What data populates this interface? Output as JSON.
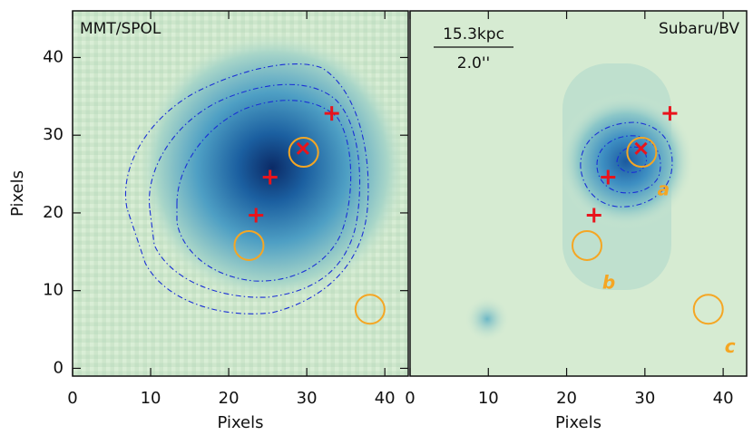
{
  "chart_data": [
    {
      "type": "image",
      "title": "MMT/SPOL",
      "title_corner": "upper left",
      "xlabel": "Pixels",
      "ylabel": "Pixels",
      "xlim": [
        0,
        43
      ],
      "ylim": [
        -1,
        46
      ],
      "xticks": [
        0,
        10,
        20,
        30,
        40
      ],
      "yticks": [
        0,
        10,
        20,
        30,
        40
      ],
      "crosses": {
        "x": [
          33.2,
          25.3,
          23.5
        ],
        "y": [
          32.8,
          24.6,
          19.7
        ],
        "color": "#e8141c"
      },
      "x_marks": {
        "x": [
          29.5
        ],
        "y": [
          28.3
        ],
        "color": "#e8141c"
      },
      "circles": {
        "x": [
          29.6,
          22.6,
          38.1
        ],
        "y": [
          27.8,
          15.8,
          7.6
        ],
        "color": "#f5a623"
      }
    },
    {
      "type": "image",
      "title": "Subaru/BV",
      "title_corner": "upper right",
      "xlabel": "Pixels",
      "xlim": [
        0,
        43
      ],
      "ylim": [
        -1,
        46
      ],
      "xticks": [
        0,
        10,
        20,
        30,
        40
      ],
      "scale_bar": {
        "top": "15.3kpc",
        "bottom": "2.0''"
      },
      "crosses": {
        "x": [
          33.2,
          25.3,
          23.5
        ],
        "y": [
          32.8,
          24.6,
          19.7
        ],
        "color": "#e8141c"
      },
      "x_marks": {
        "x": [
          29.5
        ],
        "y": [
          28.3
        ],
        "color": "#e8141c"
      },
      "circles": {
        "x": [
          29.6,
          22.6,
          38.1
        ],
        "y": [
          27.8,
          15.8,
          7.6
        ],
        "color": "#f5a623",
        "labels": [
          "a",
          "b",
          "c"
        ]
      }
    }
  ]
}
